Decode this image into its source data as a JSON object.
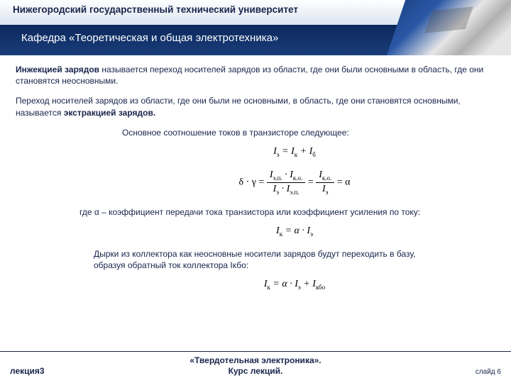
{
  "header": {
    "university": "Нижегородский государственный технический университет",
    "department": "Кафедра «Теоретическая и общая электротехника»"
  },
  "body": {
    "p1_b": "Инжекцией зарядов",
    "p1": " называется переход носителей зарядов из области, где они были основными в область, где они становятся неосновными.",
    "p2a": "Переход носителей зарядов из области, где они были не основными, в область, где они становятся основными, называется ",
    "p2_b": "экстракцией зарядов.",
    "intro": "Основное соотношение токов в транзисторе следующее:",
    "f1_left": "I",
    "f1_s1": "э",
    "f1_mid": " = I",
    "f1_s2": "к",
    "f1_mid2": " + I",
    "f1_s3": "б",
    "f2_dg": "δ · γ = ",
    "f2_num1": "I",
    "f2_num1s": "э.п.",
    "f2_num1m": " · I",
    "f2_num1s2": "к.о.",
    "f2_den1": "I",
    "f2_den1s": "э",
    "f2_den1m": " · I",
    "f2_den1s2": "э.п.",
    "f2_eq": " = ",
    "f2_num2": "I",
    "f2_num2s": "к.о.",
    "f2_den2": "I",
    "f2_den2s": "э",
    "f2_tail": " = α",
    "alpha_note": "где α – коэффициент передачи тока транзистора или коэффициент усиления по току:",
    "f3_a": "I",
    "f3_as": "к",
    "f3_b": " = α · I",
    "f3_bs": "э",
    "holes1": "Дырки из коллектора как неосновные носители зарядов будут переходить в базу,",
    "holes2": "образуя обратный ток коллектора Iкбо:",
    "f4_a": "I",
    "f4_as": "к",
    "f4_b": " = α · I",
    "f4_bs": "э",
    "f4_c": " + I",
    "f4_cs": "кбо"
  },
  "footer": {
    "lecture": "лекция3",
    "course_top": "«Твердотельная электроника».",
    "course_bot": "Курс лекций.",
    "slide": "слайд 6"
  },
  "style": {
    "text_color": "#18244b",
    "header_dark": "#0b285c",
    "bg": "#ffffff"
  }
}
